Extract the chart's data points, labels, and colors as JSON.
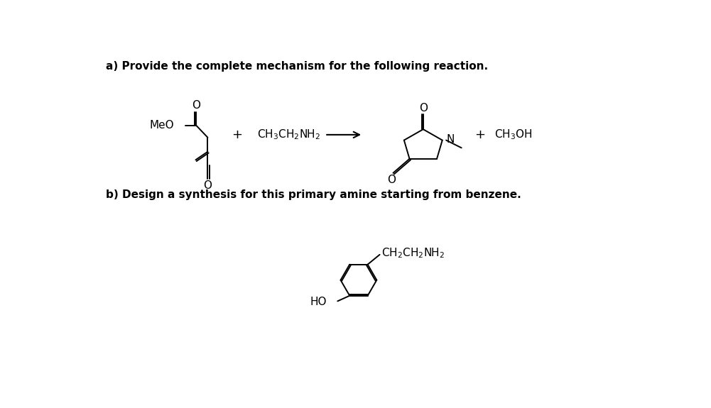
{
  "title_a": "a) Provide the complete mechanism for the following reaction.",
  "title_b": "b) Design a synthesis for this primary amine starting from benzene.",
  "bg_color": "#ffffff",
  "text_color": "#000000",
  "line_color": "#000000",
  "font_size_title": 11,
  "font_size_formula": 11,
  "r1_meo": "MeO",
  "r2": "CH$_3$CH$_2$NH$_2$",
  "p2": "CH$_3$OH",
  "n_label": "N",
  "o_label": "O",
  "ho_label": "HO",
  "amine_label": "CH$_2$CH$_2$NH$_2$"
}
